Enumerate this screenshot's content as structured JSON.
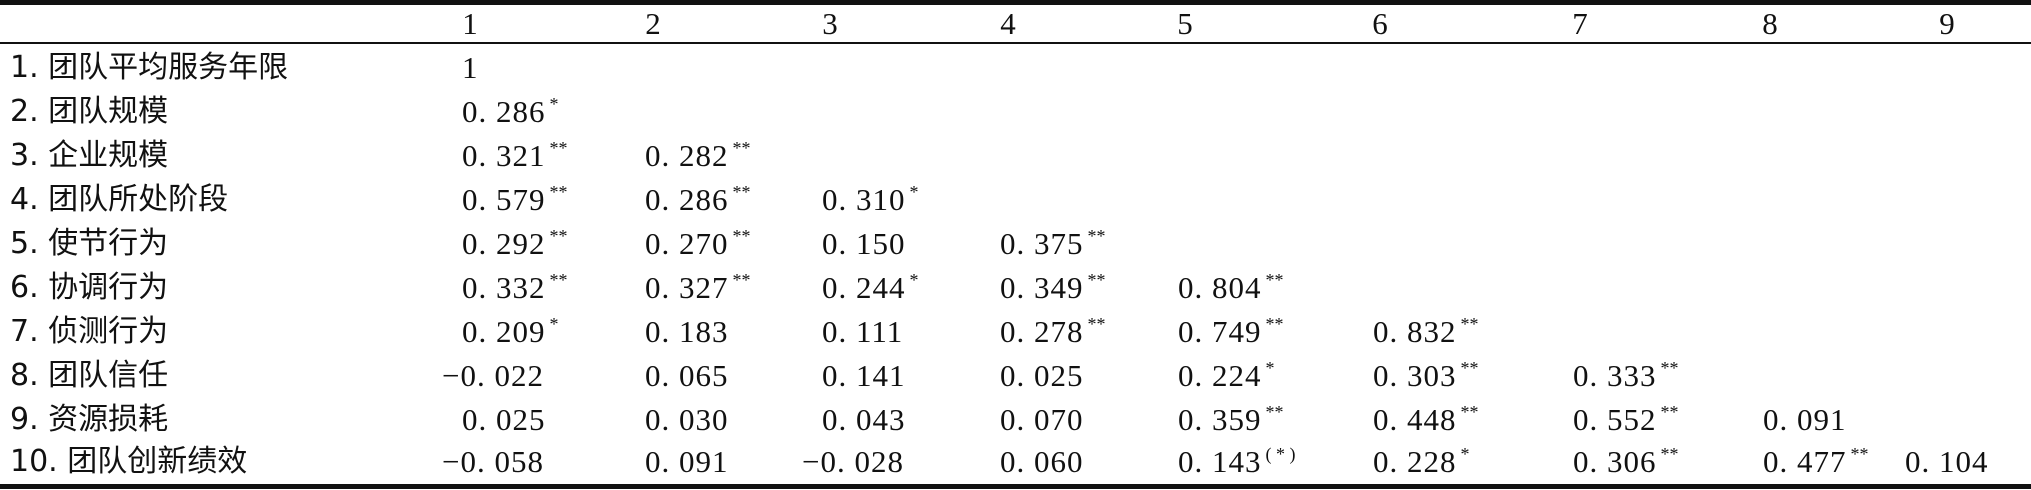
{
  "header": [
    "1",
    "2",
    "3",
    "4",
    "5",
    "6",
    "7",
    "8",
    "9"
  ],
  "rows": [
    {
      "label": "1. 团队平均服务年限",
      "cells": [
        {
          "v": "1",
          "s": ""
        }
      ]
    },
    {
      "label": "2. 团队规模",
      "cells": [
        {
          "v": "0. 286",
          "s": "*"
        }
      ]
    },
    {
      "label": "3. 企业规模",
      "cells": [
        {
          "v": "0. 321",
          "s": "**"
        },
        {
          "v": "0. 282",
          "s": "**"
        }
      ]
    },
    {
      "label": "4. 团队所处阶段",
      "cells": [
        {
          "v": "0. 579",
          "s": "**"
        },
        {
          "v": "0. 286",
          "s": "**"
        },
        {
          "v": "0. 310",
          "s": "*"
        }
      ]
    },
    {
      "label": "5. 使节行为",
      "cells": [
        {
          "v": "0. 292",
          "s": "**"
        },
        {
          "v": "0. 270",
          "s": "**"
        },
        {
          "v": "0. 150",
          "s": ""
        },
        {
          "v": "0. 375",
          "s": "**"
        }
      ]
    },
    {
      "label": "6. 协调行为",
      "cells": [
        {
          "v": "0. 332",
          "s": "**"
        },
        {
          "v": "0. 327",
          "s": "**"
        },
        {
          "v": "0. 244",
          "s": "*"
        },
        {
          "v": "0. 349",
          "s": "**"
        },
        {
          "v": "0. 804",
          "s": "**"
        }
      ]
    },
    {
      "label": "7. 侦测行为",
      "cells": [
        {
          "v": "0. 209",
          "s": "*"
        },
        {
          "v": "0. 183",
          "s": ""
        },
        {
          "v": "0. 111",
          "s": ""
        },
        {
          "v": "0. 278",
          "s": "**"
        },
        {
          "v": "0. 749",
          "s": "**"
        },
        {
          "v": "0. 832",
          "s": "**"
        }
      ]
    },
    {
      "label": "8. 团队信任",
      "cells": [
        {
          "v": "−0. 022",
          "s": ""
        },
        {
          "v": "0. 065",
          "s": ""
        },
        {
          "v": "0. 141",
          "s": ""
        },
        {
          "v": "0. 025",
          "s": ""
        },
        {
          "v": "0. 224",
          "s": "*"
        },
        {
          "v": "0. 303",
          "s": "**"
        },
        {
          "v": "0. 333",
          "s": "**"
        }
      ]
    },
    {
      "label": "9. 资源损耗",
      "cells": [
        {
          "v": "0. 025",
          "s": ""
        },
        {
          "v": "0. 030",
          "s": ""
        },
        {
          "v": "0. 043",
          "s": ""
        },
        {
          "v": "0. 070",
          "s": ""
        },
        {
          "v": "0. 359",
          "s": "**"
        },
        {
          "v": "0. 448",
          "s": "**"
        },
        {
          "v": "0. 552",
          "s": "**"
        },
        {
          "v": "0. 091",
          "s": ""
        }
      ]
    },
    {
      "label": "10. 团队创新绩效",
      "cells": [
        {
          "v": "−0. 058",
          "s": ""
        },
        {
          "v": "0. 091",
          "s": ""
        },
        {
          "v": "−0. 028",
          "s": ""
        },
        {
          "v": "0. 060",
          "s": ""
        },
        {
          "v": "0. 143",
          "s": "( * )"
        },
        {
          "v": "0. 228",
          "s": "*"
        },
        {
          "v": "0. 306",
          "s": "**"
        },
        {
          "v": "0. 477",
          "s": "**"
        },
        {
          "v": "0. 104",
          "s": ""
        }
      ]
    }
  ]
}
